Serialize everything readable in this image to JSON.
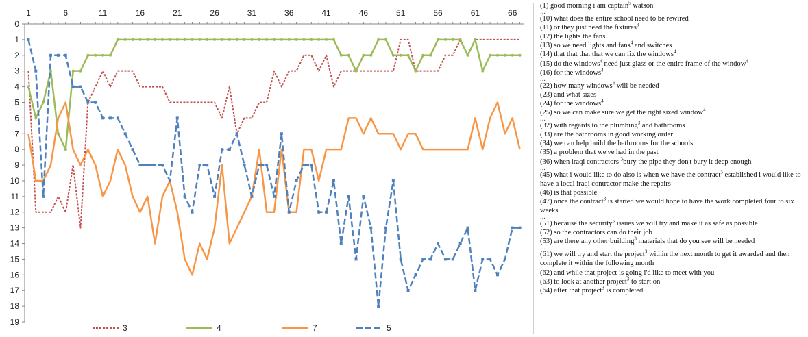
{
  "chart_data": {
    "type": "line",
    "x": [
      1,
      2,
      3,
      4,
      5,
      6,
      7,
      8,
      9,
      10,
      11,
      12,
      13,
      14,
      15,
      16,
      17,
      18,
      19,
      20,
      21,
      22,
      23,
      24,
      25,
      26,
      27,
      28,
      29,
      30,
      31,
      32,
      33,
      34,
      35,
      36,
      37,
      38,
      39,
      40,
      41,
      42,
      43,
      44,
      45,
      46,
      47,
      48,
      49,
      50,
      51,
      52,
      53,
      54,
      55,
      56,
      57,
      58,
      59,
      60,
      61,
      62,
      63,
      64,
      65,
      66,
      67
    ],
    "x_ticks": [
      "1",
      "6",
      "11",
      "16",
      "21",
      "26",
      "31",
      "36",
      "41",
      "46",
      "51",
      "56",
      "61",
      "66"
    ],
    "y_ticks": [
      "0",
      "1",
      "2",
      "3",
      "4",
      "5",
      "6",
      "7",
      "8",
      "9",
      "10",
      "11",
      "12",
      "13",
      "14",
      "15",
      "16",
      "17",
      "18",
      "19"
    ],
    "ylim": [
      0,
      19
    ],
    "y_inverted": true,
    "x_axis_position": "top",
    "legend_position": "bottom",
    "series": [
      {
        "name": "3",
        "color": "#c0504d",
        "style": "dotted",
        "marker": "none",
        "values": [
          3,
          12,
          12,
          12,
          11,
          12,
          9,
          13,
          5,
          4,
          3,
          4,
          3,
          3,
          3,
          4,
          4,
          4,
          4,
          5,
          5,
          5,
          5,
          5,
          5,
          5,
          6,
          4,
          7,
          6,
          6,
          5,
          5,
          3,
          4,
          3,
          3,
          2,
          2,
          3,
          2,
          4,
          3,
          3,
          3,
          3,
          3,
          3,
          3,
          3,
          1,
          1,
          3,
          3,
          3,
          3,
          2,
          2,
          1,
          2,
          1,
          1,
          1,
          1,
          1,
          1,
          1
        ]
      },
      {
        "name": "4",
        "color": "#9bbb59",
        "style": "solid",
        "marker": "circle",
        "values": [
          4,
          6,
          5,
          3,
          7,
          8,
          3,
          3,
          2,
          2,
          2,
          2,
          1,
          1,
          1,
          1,
          1,
          1,
          1,
          1,
          1,
          1,
          1,
          1,
          1,
          1,
          1,
          1,
          1,
          1,
          1,
          1,
          1,
          1,
          1,
          1,
          1,
          1,
          1,
          1,
          1,
          1,
          2,
          2,
          3,
          2,
          2,
          1,
          1,
          2,
          2,
          2,
          3,
          2,
          2,
          1,
          1,
          1,
          1,
          2,
          1,
          3,
          2,
          2,
          2,
          2,
          2
        ]
      },
      {
        "name": "7",
        "color": "#f79646",
        "style": "solid",
        "marker": "none",
        "values": [
          7,
          10,
          10,
          9,
          6,
          5,
          8,
          9,
          8,
          9,
          11,
          10,
          8,
          9,
          11,
          12,
          11,
          14,
          11,
          10,
          12,
          15,
          16,
          14,
          15,
          13,
          9,
          14,
          13,
          12,
          11,
          8,
          12,
          12,
          8,
          12,
          12,
          8,
          8,
          10,
          8,
          8,
          8,
          6,
          6,
          7,
          6,
          7,
          7,
          7,
          8,
          7,
          7,
          8,
          8,
          8,
          8,
          8,
          8,
          8,
          6,
          8,
          6,
          5,
          7,
          6,
          8
        ]
      },
      {
        "name": "5",
        "color": "#4f81bd",
        "style": "dashed",
        "marker": "square",
        "values": [
          1,
          3,
          11,
          2,
          2,
          2,
          4,
          4,
          5,
          5,
          6,
          6,
          6,
          7,
          8,
          9,
          9,
          9,
          9,
          10,
          6,
          11,
          12,
          9,
          9,
          11,
          8,
          8,
          7,
          9,
          11,
          9,
          9,
          11,
          7,
          12,
          10,
          9,
          9,
          12,
          12,
          10,
          14,
          11,
          15,
          11,
          13,
          18,
          13,
          10,
          15,
          17,
          16,
          15,
          15,
          14,
          15,
          15,
          14,
          13,
          17,
          15,
          15,
          16,
          15,
          13,
          13
        ]
      }
    ]
  },
  "transcript": {
    "lines": [
      {
        "t": "(1) good morning i am captain",
        "s": "5",
        "r": " watson"
      },
      {
        "t": "...",
        "ell": true
      },
      {
        "t": "(10) what does the entire school need to be rewired"
      },
      {
        "t": "(11) or they just need the fixtures",
        "s": "3",
        "r": ""
      },
      {
        "t": "(12) the lights the fans"
      },
      {
        "t": "(13) so we need lights and fans",
        "s": "4",
        "r": " and switches"
      },
      {
        "t": "(14) that that that that we can fix the windows",
        "s": "4",
        "r": ""
      },
      {
        "t": "(15) do the windows",
        "s": "4",
        "r": "  need just glass or the entire frame of the window",
        "s2": "4"
      },
      {
        "t": "(16) for the windows",
        "s": "4",
        "r": ""
      },
      {
        "t": "...",
        "ell": true
      },
      {
        "t": "(22) how many windows",
        "s": "4",
        "r": "  will be needed"
      },
      {
        "t": "(23) and what sizes"
      },
      {
        "t": "(24) for the windows",
        "s": "4",
        "r": ""
      },
      {
        "t": "(25) so we can make sure we get the right sized window",
        "s": "4",
        "r": ""
      },
      {
        "t": "...",
        "ell": true
      },
      {
        "t": "(32) with regards to the plumbing",
        "s": "3",
        "r": " and bathrooms"
      },
      {
        "t": "(33) are the bathrooms in good working order"
      },
      {
        "t": "(34) we can help build  the bathrooms for the schools"
      },
      {
        "t": "(35) a problem that we've had in the past"
      },
      {
        "t": "(36) when iraqi contractors ",
        "s": "3",
        "r": "bury the pipe they don't bury it deep enough"
      },
      {
        "t": "...",
        "ell": true
      },
      {
        "t": "(45) what i would like to do also is when we have the contract",
        "s": "3",
        "r": " established i would like to have a local iraqi contractor make the repairs"
      },
      {
        "t": "(46) is that possible"
      },
      {
        "t": "(47) once the contract",
        "s": "3",
        "r": " is started we would hope to have the work completed four to six weeks"
      },
      {
        "t": "...",
        "ell": true
      },
      {
        "t": "(51) because the security",
        "s": "5",
        "r": " issues  we will try and make it as safe as possible"
      },
      {
        "t": "(52) so the contractors can do their job"
      },
      {
        "t": "(53) are there any other building",
        "s": "3",
        "r": "  materials that do you see will  be needed"
      },
      {
        "t": "...",
        "ell": true
      },
      {
        "t": "(61) we will  try and start the project",
        "s": "3",
        "r": " within the next month to get it awarded and then complete it within the following month"
      },
      {
        "t": "(62) and while that project is going i'd like to meet with you"
      },
      {
        "t": "(63) to look at another project",
        "s": "3",
        "r": " to start on"
      },
      {
        "t": "(64) after that project",
        "s": "3",
        "r": " is completed"
      }
    ]
  }
}
